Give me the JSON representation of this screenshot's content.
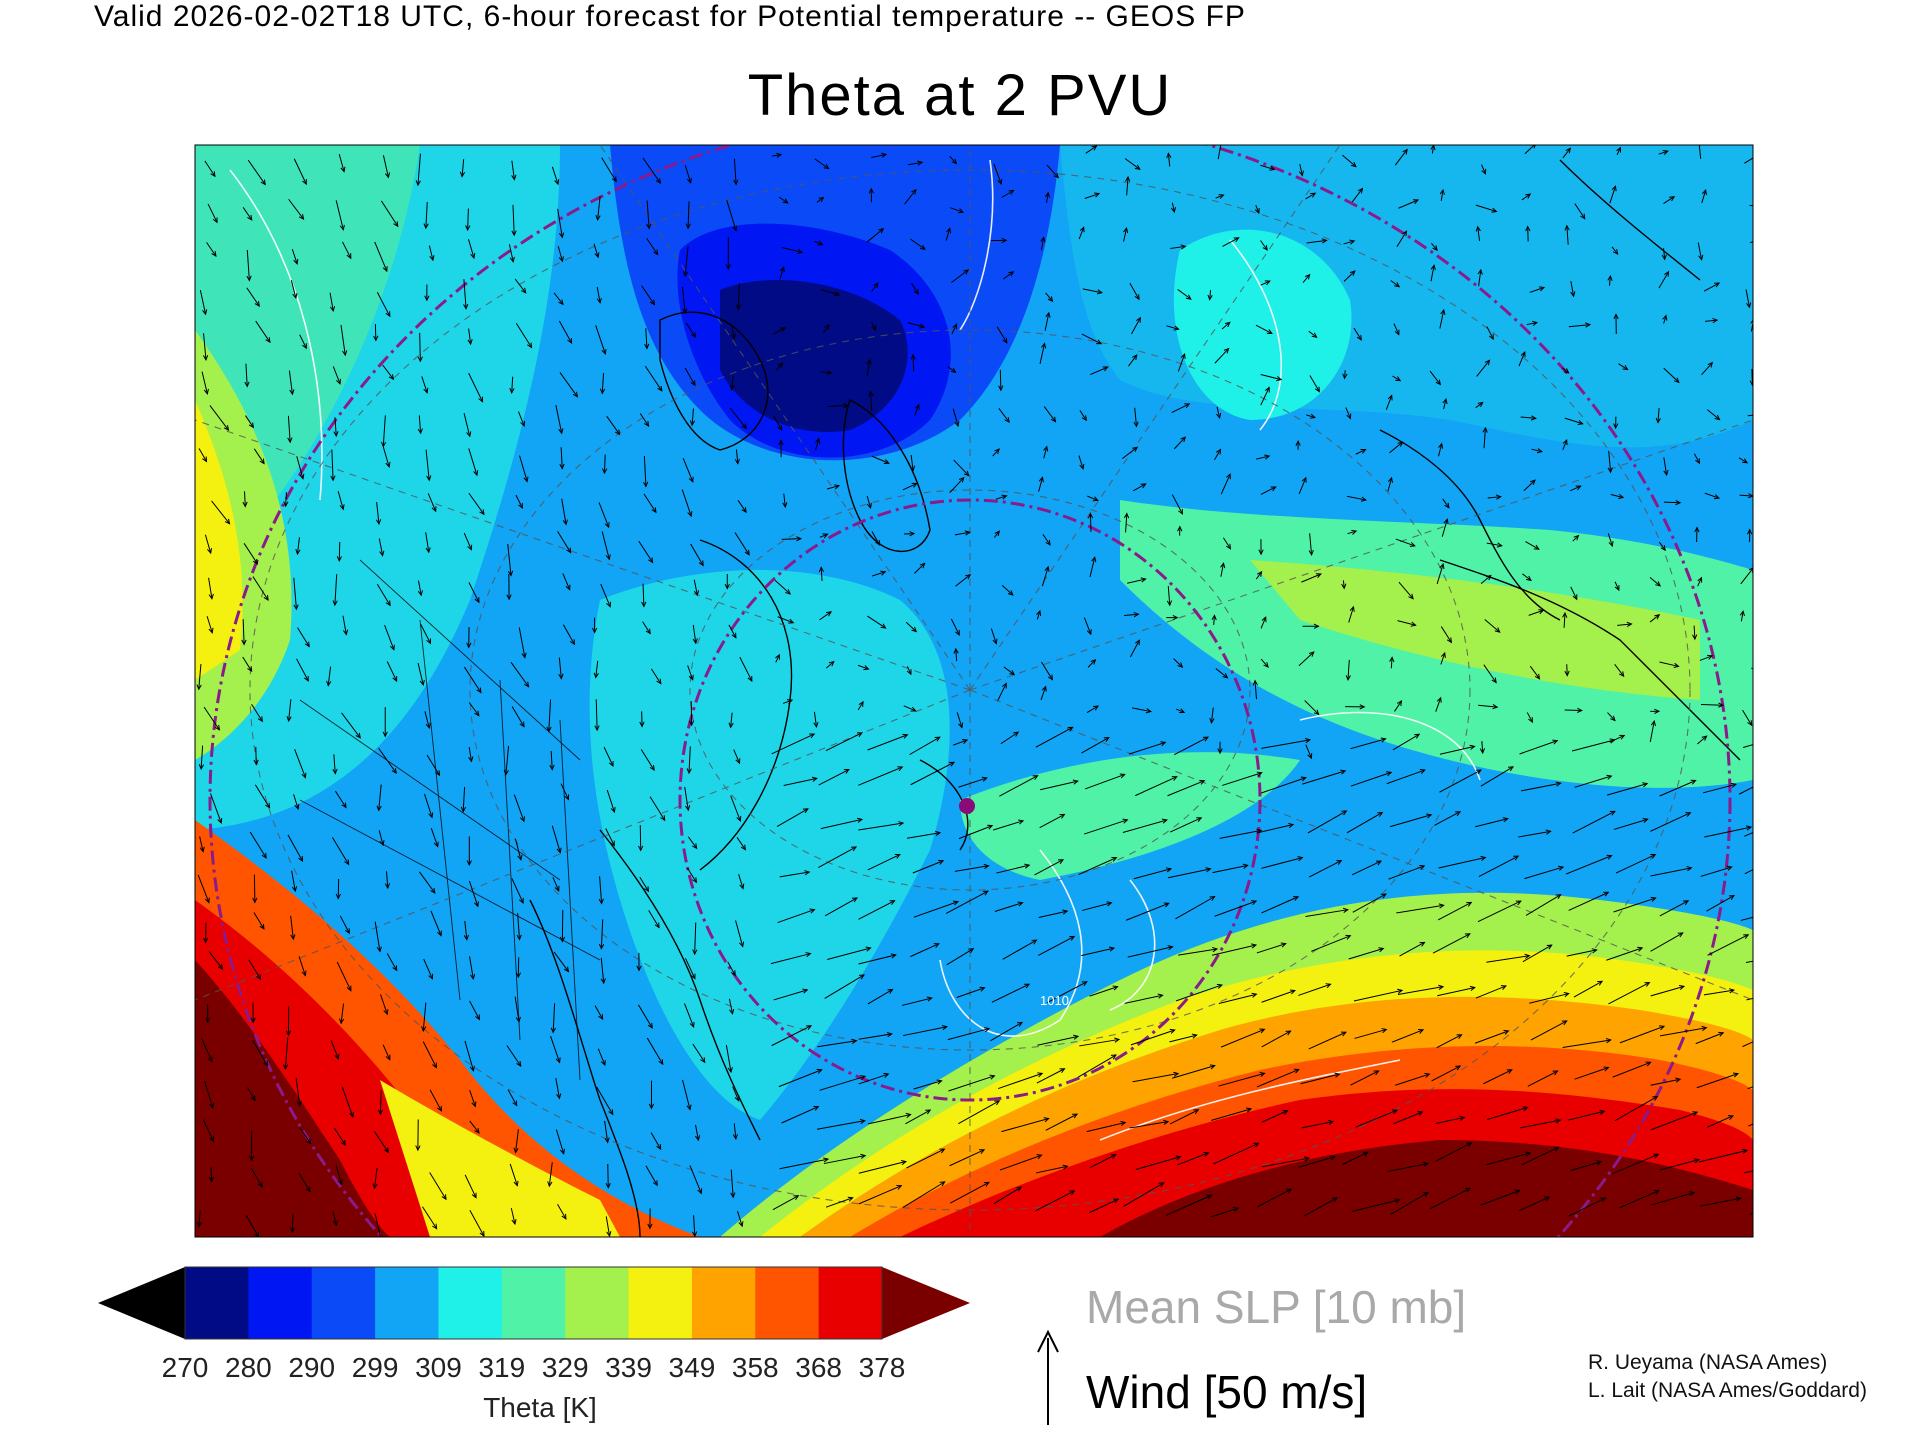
{
  "header": {
    "subtitle": "Valid 2026-02-02T18 UTC, 6-hour forecast for Potential temperature -- GEOS FP",
    "title": "Theta at 2 PVU"
  },
  "colorbar": {
    "label": "Theta [K]",
    "tick_labels": [
      "270",
      "280",
      "290",
      "299",
      "309",
      "319",
      "329",
      "339",
      "349",
      "358",
      "368",
      "378"
    ],
    "colors": [
      "#000000",
      "#000b85",
      "#0016f2",
      "#0a4bf7",
      "#12a4f5",
      "#1ff0e8",
      "#4ff2a6",
      "#a4f04d",
      "#f4f00f",
      "#ffa300",
      "#ff5400",
      "#e80000",
      "#7a0000"
    ]
  },
  "legend": {
    "slp_label": "Mean SLP [10 mb]",
    "wind_label": "Wind [50 m/s]"
  },
  "credits": {
    "line1": "R. Ueyama (NASA Ames)",
    "line2": "L. Lait (NASA Ames/Goddard)"
  },
  "map": {
    "slp_contour_label": "1010",
    "marker_color": "#8b0a7a",
    "circle_color": "#8b1a8b"
  }
}
